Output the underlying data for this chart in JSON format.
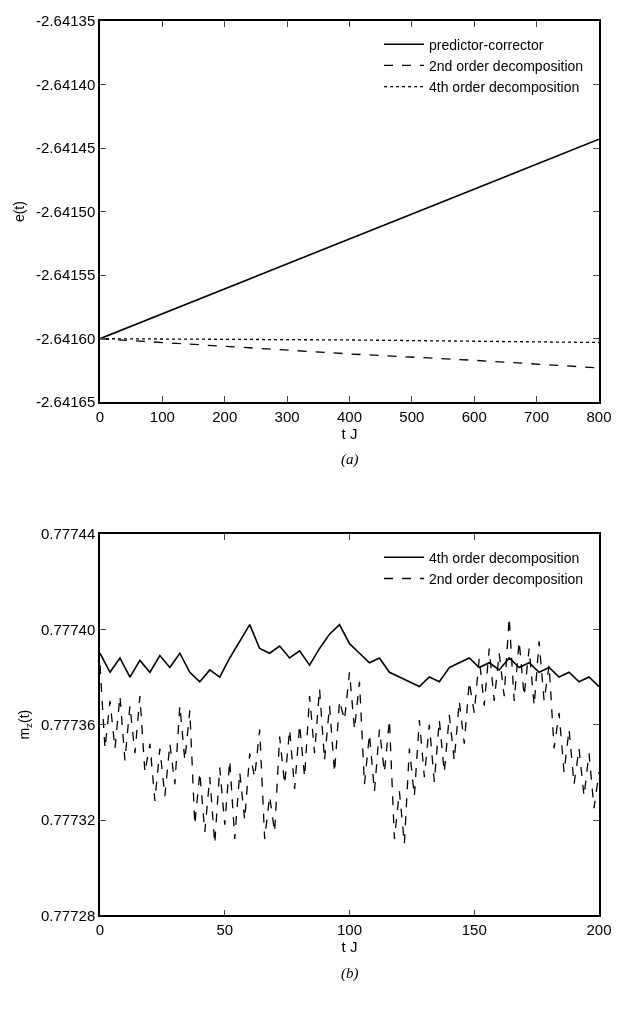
{
  "chart_data": [
    {
      "type": "line",
      "xlabel": "t J",
      "ylabel": "e(t)",
      "xlim": [
        0,
        800
      ],
      "xticks": [
        0,
        100,
        200,
        300,
        400,
        500,
        600,
        700,
        800
      ],
      "ylim": [
        -2.64165,
        -2.64135
      ],
      "yticks": [
        {
          "value": -2.64165,
          "label": "-2.64165"
        },
        {
          "value": -2.6416,
          "label": "-2.64160"
        },
        {
          "value": -2.64155,
          "label": "-2.64155"
        },
        {
          "value": -2.6415,
          "label": "-2.64150"
        },
        {
          "value": -2.64145,
          "label": "-2.64145"
        },
        {
          "value": -2.6414,
          "label": "-2.64140"
        },
        {
          "value": -2.64135,
          "label": "-2.64135"
        }
      ],
      "legend": "top right",
      "marker": "none",
      "annotations": [
        "(a)"
      ],
      "series": [
        {
          "name": "predictor-corrector",
          "color": "#000000",
          "line_style": "solid",
          "x": [
            0,
            800
          ],
          "values": [
            -2.6416,
            -2.641443
          ]
        },
        {
          "name": "2nd order decomposition",
          "color": "#000000",
          "line_style": "dashed",
          "x": [
            0,
            200,
            400,
            600,
            800
          ],
          "values": [
            -2.6416,
            -2.641606,
            -2.641612,
            -2.641617,
            -2.641623
          ]
        },
        {
          "name": "4th order decomposition",
          "color": "#000000",
          "line_style": "dotted",
          "x": [
            0,
            400,
            800
          ],
          "values": [
            -2.6416,
            -2.641601,
            -2.641603
          ]
        }
      ]
    },
    {
      "type": "line",
      "xlabel": "t J",
      "ylabel": "m$_{z}$(t)",
      "xlim": [
        0,
        200
      ],
      "xticks": [
        0,
        50,
        100,
        150,
        200
      ],
      "ylim": [
        0.77728,
        0.77744
      ],
      "yticks": [
        {
          "value": 0.77728,
          "label": "0.77728"
        },
        {
          "value": 0.77732,
          "label": "0.77732"
        },
        {
          "value": 0.77736,
          "label": "0.77736"
        },
        {
          "value": 0.7774,
          "label": "0.77740"
        },
        {
          "value": 0.77744,
          "label": "0.77744"
        }
      ],
      "legend": "top right",
      "marker": "none",
      "annotations": [
        "(b)"
      ],
      "series": [
        {
          "name": "4th order decomposition",
          "color": "#000000",
          "line_style": "solid",
          "x": [
            0,
            4,
            8,
            12,
            16,
            20,
            24,
            28,
            32,
            36,
            40,
            44,
            48,
            52,
            56,
            60,
            64,
            68,
            72,
            76,
            80,
            84,
            88,
            92,
            96,
            100,
            104,
            108,
            112,
            116,
            120,
            124,
            128,
            132,
            136,
            140,
            144,
            148,
            152,
            156,
            160,
            164,
            168,
            172,
            176,
            180,
            184,
            188,
            192,
            196,
            200
          ],
          "values": [
            0.77739,
            0.777382,
            0.777388,
            0.77738,
            0.777387,
            0.777382,
            0.777389,
            0.777384,
            0.77739,
            0.777382,
            0.777378,
            0.777383,
            0.77738,
            0.777388,
            0.777395,
            0.777402,
            0.777392,
            0.77739,
            0.777393,
            0.777388,
            0.777391,
            0.777385,
            0.777392,
            0.777398,
            0.777402,
            0.777394,
            0.77739,
            0.777386,
            0.777388,
            0.777382,
            0.77738,
            0.777378,
            0.777376,
            0.77738,
            0.777378,
            0.777384,
            0.777386,
            0.777388,
            0.777384,
            0.777386,
            0.777383,
            0.777388,
            0.777384,
            0.777386,
            0.777382,
            0.777384,
            0.77738,
            0.777382,
            0.777378,
            0.77738,
            0.777376
          ]
        },
        {
          "name": "2nd order decomposition",
          "color": "#000000",
          "line_style": "dashed",
          "x": [
            0,
            2,
            4,
            6,
            8,
            10,
            12,
            14,
            16,
            18,
            20,
            22,
            24,
            26,
            28,
            30,
            32,
            34,
            36,
            38,
            40,
            42,
            44,
            46,
            48,
            50,
            52,
            54,
            56,
            58,
            60,
            62,
            64,
            66,
            68,
            70,
            72,
            74,
            76,
            78,
            80,
            82,
            84,
            86,
            88,
            90,
            92,
            94,
            96,
            98,
            100,
            102,
            104,
            106,
            108,
            110,
            112,
            114,
            116,
            118,
            120,
            122,
            124,
            126,
            128,
            130,
            132,
            134,
            136,
            138,
            140,
            142,
            144,
            146,
            148,
            150,
            152,
            154,
            156,
            158,
            160,
            162,
            164,
            166,
            168,
            170,
            172,
            174,
            176,
            178,
            180,
            182,
            184,
            186,
            188,
            190,
            192,
            194,
            196,
            198,
            200
          ],
          "values": [
            0.777385,
            0.77735,
            0.77737,
            0.77735,
            0.777372,
            0.777345,
            0.777368,
            0.777348,
            0.777372,
            0.77734,
            0.777352,
            0.777328,
            0.77735,
            0.77733,
            0.777352,
            0.777335,
            0.777368,
            0.777345,
            0.777366,
            0.777318,
            0.77734,
            0.777315,
            0.777338,
            0.77731,
            0.777342,
            0.777318,
            0.777345,
            0.777312,
            0.77734,
            0.77732,
            0.777348,
            0.777338,
            0.777358,
            0.777312,
            0.77733,
            0.777315,
            0.777355,
            0.777335,
            0.777358,
            0.777333,
            0.77736,
            0.777338,
            0.777372,
            0.777348,
            0.777375,
            0.777345,
            0.777368,
            0.77734,
            0.77737,
            0.777362,
            0.777382,
            0.777358,
            0.777378,
            0.777335,
            0.777356,
            0.777332,
            0.777358,
            0.77734,
            0.777362,
            0.777312,
            0.777332,
            0.77731,
            0.77735,
            0.77733,
            0.777362,
            0.777338,
            0.77736,
            0.777336,
            0.777362,
            0.77734,
            0.777364,
            0.777345,
            0.77737,
            0.777352,
            0.777378,
            0.777365,
            0.777388,
            0.777368,
            0.777392,
            0.77737,
            0.77739,
            0.777372,
            0.777405,
            0.77737,
            0.777395,
            0.777372,
            0.777392,
            0.777368,
            0.777395,
            0.77737,
            0.777385,
            0.77735,
            0.777365,
            0.77734,
            0.777358,
            0.777335,
            0.77735,
            0.77733,
            0.777348,
            0.777325,
            0.77734
          ]
        }
      ]
    }
  ]
}
